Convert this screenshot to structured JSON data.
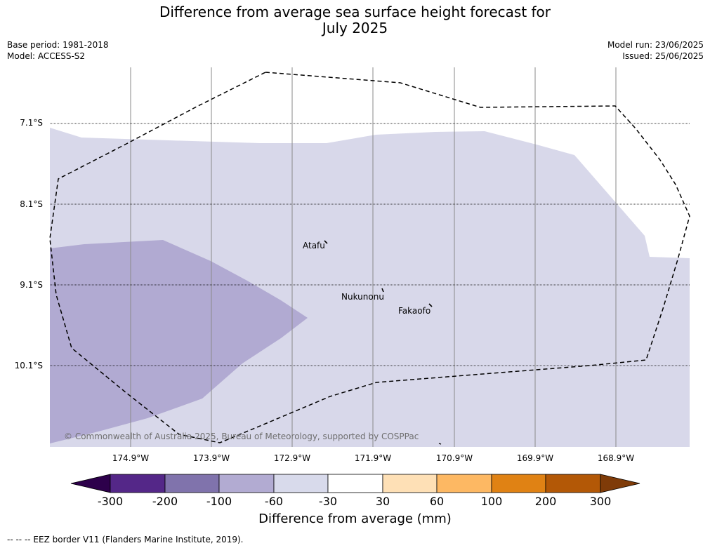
{
  "title": {
    "line1": "Difference from average sea surface height forecast for",
    "line2": "July 2025"
  },
  "meta": {
    "base_period": "Base period: 1981-2018",
    "model": "Model: ACCESS-S2",
    "model_run": "Model run: 23/06/2025",
    "issued": "Issued: 25/06/2025"
  },
  "map": {
    "lat_labels": [
      "7.1°S",
      "8.1°S",
      "9.1°S",
      "10.1°S"
    ],
    "lon_labels": [
      "174.9°W",
      "173.9°W",
      "172.9°W",
      "171.9°W",
      "170.9°W",
      "169.9°W",
      "168.9°W"
    ],
    "places": [
      {
        "name": "Atafu"
      },
      {
        "name": "Nukunonu"
      },
      {
        "name": "Fakaofo"
      }
    ],
    "copyright": "© Commonwealth of Australia 2025, Bureau of Meteorology, supported by COSPPac",
    "fill_colors": {
      "light_purple": "#d8d8ea",
      "medium_purple": "#b1aad2"
    }
  },
  "colorbar": {
    "ticks": [
      "-300",
      "-200",
      "-100",
      "-60",
      "-30",
      "30",
      "60",
      "100",
      "200",
      "300"
    ],
    "colors": {
      "below": "#2d004b",
      "segments": [
        "#542788",
        "#8073ac",
        "#b2abd2",
        "#d8daeb",
        "#ffffff",
        "#fee0b6",
        "#fdb863",
        "#e08214",
        "#b35806"
      ],
      "above": "#7f3b08"
    },
    "label": "Difference from average (mm)"
  },
  "footnote": "--  --  -- EEZ border V11 (Flanders Marine Institute, 2019)."
}
